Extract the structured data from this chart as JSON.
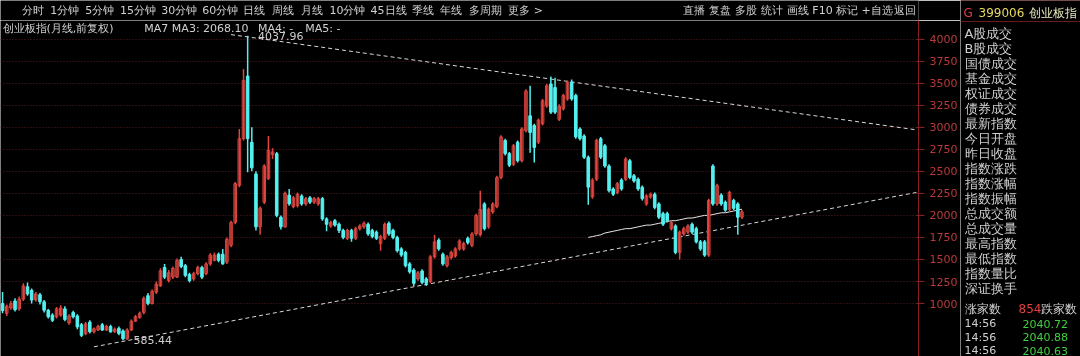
{
  "chart_data": [
    {
      "type": "other",
      "annotations": [
        "分时",
        "1分钟",
        "5分钟",
        "15分钟",
        "30分钟",
        "60分钟",
        "日线",
        "周线",
        "月线",
        "10分钟",
        "45日线",
        "季线",
        "年线",
        "多周期",
        "更多 >"
      ]
    },
    {
      "type": "other",
      "annotations": [
        "直播",
        "复盘",
        "多股",
        "统计",
        "画线",
        "F10",
        "标记",
        "+自选",
        "返回"
      ]
    },
    {
      "type": "candlestick",
      "title": "创业板指(月线,前复权)",
      "categories": [
        null,
        null,
        null,
        null,
        null,
        null,
        null,
        null,
        null,
        null,
        null,
        null,
        null,
        null,
        null,
        null,
        null,
        null,
        null,
        null,
        null,
        null,
        null,
        null,
        null,
        null,
        null,
        null,
        null,
        null,
        null,
        null,
        null,
        null,
        null,
        null,
        null,
        null,
        null,
        null,
        null,
        null,
        null,
        null,
        null,
        null,
        null,
        null,
        null,
        null,
        null,
        null,
        null,
        null,
        null,
        null,
        null,
        null,
        null,
        null,
        null,
        null,
        null,
        null,
        null,
        null,
        null,
        null,
        null,
        null,
        null,
        null,
        null,
        null,
        null,
        null,
        null,
        null,
        null,
        null,
        null,
        null,
        null,
        null,
        null,
        null,
        null,
        null,
        null,
        null,
        null,
        null,
        null,
        null,
        null,
        null,
        null,
        null,
        null,
        null,
        null,
        null,
        null,
        null,
        null,
        null,
        null,
        null,
        null,
        null,
        null,
        null,
        null,
        null,
        null,
        null,
        null,
        null,
        null,
        null,
        null,
        null,
        null,
        null,
        null,
        null,
        null,
        null,
        null,
        null,
        null,
        null,
        null,
        null,
        null,
        null,
        null,
        null,
        null,
        null,
        null,
        null,
        null,
        null,
        null,
        null,
        null,
        null,
        null,
        null,
        null,
        null,
        null,
        null,
        null,
        null,
        null,
        null,
        null,
        null,
        null,
        null,
        null,
        null,
        null,
        null,
        null,
        null,
        null,
        null,
        null,
        null,
        null,
        null,
        null,
        null,
        null,
        null,
        null,
        null,
        null,
        null,
        null,
        null,
        null,
        null,
        null,
        null,
        null,
        null,
        null,
        null,
        null,
        null,
        null,
        null,
        null,
        null,
        null,
        null,
        null,
        null,
        null,
        null,
        null,
        null,
        null,
        null,
        null,
        null,
        null,
        null,
        null,
        null,
        null,
        null,
        null,
        null,
        null,
        null,
        null
      ],
      "ohlc": [
        [
          1000,
          1130,
          890,
          920
        ],
        [
          890,
          990,
          860,
          970
        ],
        [
          950,
          1030,
          930,
          1000
        ],
        [
          1030,
          1060,
          910,
          930
        ],
        [
          940,
          1080,
          920,
          1050
        ],
        [
          1050,
          1230,
          1030,
          1200
        ],
        [
          1190,
          1240,
          1090,
          1110
        ],
        [
          1150,
          1170,
          1000,
          1040
        ],
        [
          1040,
          1130,
          1020,
          1110
        ],
        [
          1100,
          1120,
          990,
          1020
        ],
        [
          1020,
          1040,
          900,
          925
        ],
        [
          925,
          940,
          830,
          850
        ],
        [
          870,
          890,
          790,
          810
        ],
        [
          850,
          960,
          830,
          940
        ],
        [
          870,
          980,
          850,
          950
        ],
        [
          940,
          970,
          800,
          820
        ],
        [
          780,
          880,
          760,
          860
        ],
        [
          900,
          920,
          830,
          850
        ],
        [
          860,
          880,
          710,
          735
        ],
        [
          760,
          780,
          620,
          640
        ],
        [
          660,
          790,
          640,
          770
        ],
        [
          790,
          810,
          660,
          680
        ],
        [
          680,
          730,
          660,
          715
        ],
        [
          700,
          760,
          690,
          740
        ],
        [
          760,
          780,
          690,
          700
        ],
        [
          700,
          760,
          690,
          740
        ],
        [
          740,
          760,
          670,
          680
        ],
        [
          680,
          730,
          670,
          710
        ],
        [
          720,
          740,
          640,
          660
        ],
        [
          690,
          710,
          585.44,
          600
        ],
        [
          600,
          720,
          590,
          700
        ],
        [
          700,
          820,
          690,
          800
        ],
        [
          800,
          870,
          790,
          850
        ],
        [
          840,
          910,
          830,
          890
        ],
        [
          900,
          1080,
          880,
          1060
        ],
        [
          1090,
          1120,
          980,
          1000
        ],
        [
          1000,
          1160,
          990,
          1140
        ],
        [
          1130,
          1250,
          1110,
          1220
        ],
        [
          1200,
          1400,
          1190,
          1370
        ],
        [
          1410,
          1450,
          1280,
          1300
        ],
        [
          1260,
          1380,
          1240,
          1350
        ],
        [
          1300,
          1420,
          1280,
          1400
        ],
        [
          1300,
          1510,
          1290,
          1490
        ],
        [
          1500,
          1530,
          1400,
          1420
        ],
        [
          1430,
          1450,
          1300,
          1320
        ],
        [
          1330,
          1350,
          1240,
          1260
        ],
        [
          1280,
          1360,
          1260,
          1340
        ],
        [
          1340,
          1430,
          1320,
          1410
        ],
        [
          1410,
          1430,
          1280,
          1300
        ],
        [
          1340,
          1470,
          1320,
          1450
        ],
        [
          1450,
          1570,
          1430,
          1550
        ],
        [
          1490,
          1580,
          1480,
          1550
        ],
        [
          1560,
          1580,
          1470,
          1490
        ],
        [
          1560,
          1620,
          1440,
          1450
        ],
        [
          1470,
          1750,
          1450,
          1730
        ],
        [
          1660,
          1940,
          1640,
          1920
        ],
        [
          1920,
          2380,
          1900,
          2360
        ],
        [
          2340,
          2980,
          2320,
          2870
        ],
        [
          2870,
          3660,
          2850,
          3530
        ],
        [
          3580,
          4037.96,
          2490,
          2870
        ],
        [
          2830,
          3000,
          2500,
          2540
        ],
        [
          2470,
          2500,
          1830,
          1870
        ],
        [
          1870,
          2100,
          1780,
          2080
        ],
        [
          2150,
          2580,
          2130,
          2560
        ],
        [
          2420,
          2900,
          2400,
          2740
        ],
        [
          2690,
          2760,
          2640,
          2720
        ],
        [
          2700,
          2720,
          1980,
          2000
        ],
        [
          1980,
          2000,
          1840,
          1870
        ],
        [
          1870,
          2270,
          1860,
          2250
        ],
        [
          2230,
          2300,
          2110,
          2130
        ],
        [
          2100,
          2220,
          2080,
          2200
        ],
        [
          2110,
          2260,
          2090,
          2240
        ],
        [
          2220,
          2240,
          2110,
          2130
        ],
        [
          2130,
          2210,
          2110,
          2190
        ],
        [
          2200,
          2220,
          2130,
          2150
        ],
        [
          2150,
          2210,
          2130,
          2190
        ],
        [
          2130,
          2210,
          2110,
          2190
        ],
        [
          2190,
          2210,
          1940,
          1960
        ],
        [
          1960,
          1980,
          1820,
          1900
        ],
        [
          1880,
          1940,
          1860,
          1920
        ],
        [
          1940,
          1960,
          1870,
          1890
        ],
        [
          1900,
          1920,
          1800,
          1830
        ],
        [
          1830,
          1850,
          1730,
          1750
        ],
        [
          1740,
          1850,
          1720,
          1830
        ],
        [
          1830,
          1850,
          1700,
          1740
        ],
        [
          1740,
          1870,
          1720,
          1850
        ],
        [
          1850,
          1900,
          1830,
          1880
        ],
        [
          1870,
          1930,
          1850,
          1910
        ],
        [
          1900,
          1920,
          1770,
          1790
        ],
        [
          1830,
          1850,
          1740,
          1760
        ],
        [
          1810,
          1830,
          1720,
          1740
        ],
        [
          1680,
          1780,
          1600,
          1760
        ],
        [
          1740,
          1920,
          1720,
          1900
        ],
        [
          1910,
          1930,
          1770,
          1790
        ],
        [
          1830,
          1850,
          1730,
          1750
        ],
        [
          1750,
          1770,
          1580,
          1600
        ],
        [
          1620,
          1640,
          1530,
          1550
        ],
        [
          1580,
          1600,
          1410,
          1430
        ],
        [
          1450,
          1470,
          1340,
          1360
        ],
        [
          1380,
          1400,
          1200,
          1230
        ],
        [
          1280,
          1370,
          1260,
          1350
        ],
        [
          1370,
          1390,
          1220,
          1240
        ],
        [
          1280,
          1300,
          1200,
          1230
        ],
        [
          1250,
          1550,
          1230,
          1530
        ],
        [
          1530,
          1780,
          1510,
          1700
        ],
        [
          1720,
          1740,
          1600,
          1620
        ],
        [
          1560,
          1580,
          1430,
          1450
        ],
        [
          1430,
          1550,
          1410,
          1530
        ],
        [
          1520,
          1600,
          1500,
          1580
        ],
        [
          1540,
          1640,
          1520,
          1620
        ],
        [
          1620,
          1730,
          1600,
          1710
        ],
        [
          1620,
          1700,
          1600,
          1680
        ],
        [
          1740,
          1760,
          1670,
          1690
        ],
        [
          1660,
          1810,
          1640,
          1790
        ],
        [
          1790,
          2020,
          1770,
          2000
        ],
        [
          1780,
          2280,
          1760,
          2070
        ],
        [
          2130,
          2150,
          1830,
          1850
        ],
        [
          1870,
          2090,
          1850,
          2070
        ],
        [
          2040,
          2150,
          2020,
          2130
        ],
        [
          2100,
          2450,
          2080,
          2430
        ],
        [
          2430,
          2910,
          2410,
          2890
        ],
        [
          2850,
          2870,
          2680,
          2700
        ],
        [
          2700,
          2720,
          2550,
          2570
        ],
        [
          2580,
          2810,
          2560,
          2790
        ],
        [
          2830,
          2850,
          2600,
          2620
        ],
        [
          2620,
          3000,
          2600,
          2980
        ],
        [
          2960,
          3430,
          2940,
          3410
        ],
        [
          3130,
          3470,
          2710,
          2940
        ],
        [
          3020,
          3040,
          2600,
          2770
        ],
        [
          2830,
          3100,
          2810,
          3080
        ],
        [
          3040,
          3320,
          3020,
          3300
        ],
        [
          3240,
          3490,
          3220,
          3470
        ],
        [
          3490,
          3576,
          3150,
          3170
        ],
        [
          3450,
          3560,
          3150,
          3170
        ],
        [
          3090,
          3260,
          3070,
          3240
        ],
        [
          3210,
          3380,
          3190,
          3360
        ],
        [
          3320,
          3530,
          3300,
          3510
        ],
        [
          3510,
          3540,
          3300,
          3320
        ],
        [
          3360,
          3380,
          2870,
          2890
        ],
        [
          2980,
          3000,
          2850,
          2870
        ],
        [
          2900,
          2920,
          2640,
          2660
        ],
        [
          2660,
          2680,
          2120,
          2320
        ],
        [
          2210,
          2420,
          2190,
          2400
        ],
        [
          2410,
          2870,
          2390,
          2850
        ],
        [
          2870,
          2890,
          2640,
          2660
        ],
        [
          2790,
          2810,
          2540,
          2560
        ],
        [
          2560,
          2580,
          2260,
          2280
        ],
        [
          2300,
          2320,
          2220,
          2240
        ],
        [
          2260,
          2380,
          2240,
          2360
        ],
        [
          2400,
          2420,
          2280,
          2300
        ],
        [
          2410,
          2660,
          2390,
          2640
        ],
        [
          2620,
          2640,
          2410,
          2430
        ],
        [
          2450,
          2470,
          2370,
          2390
        ],
        [
          2410,
          2430,
          2280,
          2300
        ],
        [
          2320,
          2340,
          2170,
          2190
        ],
        [
          2130,
          2240,
          2110,
          2220
        ],
        [
          2210,
          2260,
          2190,
          2240
        ],
        [
          2240,
          2260,
          2070,
          2090
        ],
        [
          2130,
          2150,
          1960,
          1980
        ],
        [
          2020,
          2040,
          1880,
          1900
        ],
        [
          2020,
          2040,
          1920,
          1940
        ],
        [
          1850,
          1940,
          1830,
          1920
        ],
        [
          1880,
          1900,
          1560,
          1580
        ],
        [
          1580,
          1830,
          1500,
          1810
        ],
        [
          1790,
          1870,
          1770,
          1850
        ],
        [
          1810,
          1900,
          1790,
          1880
        ],
        [
          1900,
          1920,
          1790,
          1810
        ],
        [
          1850,
          1870,
          1680,
          1700
        ],
        [
          1700,
          1720,
          1600,
          1620
        ],
        [
          1700,
          1720,
          1530,
          1550
        ],
        [
          1550,
          2190,
          1530,
          2170
        ],
        [
          2560,
          2580,
          2110,
          2130
        ],
        [
          2130,
          2360,
          2110,
          2340
        ],
        [
          2230,
          2250,
          2110,
          2130
        ],
        [
          2150,
          2170,
          2040,
          2060
        ],
        [
          2070,
          2280,
          2050,
          2260
        ],
        [
          2170,
          2190,
          2060,
          2080
        ],
        [
          2130,
          2150,
          1780,
          1980
        ],
        [
          1980,
          2060,
          1960,
          2040
        ],
        null,
        null,
        null,
        null,
        null,
        null,
        null,
        null,
        null,
        null,
        null,
        null,
        null,
        null,
        null,
        null,
        null,
        null,
        null,
        null,
        null,
        null,
        null,
        null,
        null,
        null,
        null,
        null,
        null,
        null,
        null,
        null,
        null,
        null,
        null,
        null,
        null,
        null,
        null,
        null,
        null,
        null
      ],
      "colors": [
        "#54f0f0",
        "#e0463f",
        "#e0463f",
        "#54f0f0",
        "#e0463f",
        "#e0463f",
        "#54f0f0",
        "#54f0f0",
        "#e0463f",
        "#54f0f0",
        "#54f0f0",
        "#54f0f0",
        "#54f0f0",
        "#e0463f",
        "#e0463f",
        "#54f0f0",
        "#e0463f",
        "#54f0f0",
        "#54f0f0",
        "#54f0f0",
        "#e0463f",
        "#54f0f0",
        "#e0463f",
        "#e0463f",
        "#54f0f0",
        "#e0463f",
        "#54f0f0",
        "#e0463f",
        "#54f0f0",
        "#54f0f0",
        "#e0463f",
        "#e0463f",
        "#e0463f",
        "#e0463f",
        "#e0463f",
        "#54f0f0",
        "#e0463f",
        "#e0463f",
        "#e0463f",
        "#54f0f0",
        "#e0463f",
        "#e0463f",
        "#e0463f",
        "#54f0f0",
        "#54f0f0",
        "#54f0f0",
        "#e0463f",
        "#e0463f",
        "#54f0f0",
        "#e0463f",
        "#e0463f",
        "#e0463f",
        "#54f0f0",
        "#54f0f0",
        "#e0463f",
        "#e0463f",
        "#e0463f",
        "#e0463f",
        "#e0463f",
        "#54f0f0",
        "#54f0f0",
        "#54f0f0",
        "#e0463f",
        "#e0463f",
        "#e0463f",
        "#e0463f",
        "#54f0f0",
        "#54f0f0",
        "#e0463f",
        "#54f0f0",
        "#e0463f",
        "#e0463f",
        "#54f0f0",
        "#e0463f",
        "#54f0f0",
        "#e0463f",
        "#e0463f",
        "#54f0f0",
        "#54f0f0",
        "#e0463f",
        "#54f0f0",
        "#54f0f0",
        "#54f0f0",
        "#e0463f",
        "#54f0f0",
        "#e0463f",
        "#e0463f",
        "#e0463f",
        "#54f0f0",
        "#54f0f0",
        "#54f0f0",
        "#e0463f",
        "#e0463f",
        "#54f0f0",
        "#54f0f0",
        "#54f0f0",
        "#54f0f0",
        "#54f0f0",
        "#54f0f0",
        "#54f0f0",
        "#e0463f",
        "#54f0f0",
        "#54f0f0",
        "#e0463f",
        "#e0463f",
        "#54f0f0",
        "#54f0f0",
        "#e0463f",
        "#e0463f",
        "#e0463f",
        "#e0463f",
        "#e0463f",
        "#54f0f0",
        "#e0463f",
        "#e0463f",
        "#e0463f",
        "#54f0f0",
        "#e0463f",
        "#e0463f",
        "#e0463f",
        "#e0463f",
        "#54f0f0",
        "#54f0f0",
        "#e0463f",
        "#54f0f0",
        "#e0463f",
        "#e0463f",
        "#54f0f0",
        "#54f0f0",
        "#e0463f",
        "#e0463f",
        "#e0463f",
        "#54f0f0",
        "#54f0f0",
        "#e0463f",
        "#e0463f",
        "#e0463f",
        "#54f0f0",
        "#54f0f0",
        "#54f0f0",
        "#54f0f0",
        "#54f0f0",
        "#e0463f",
        "#e0463f",
        "#54f0f0",
        "#54f0f0",
        "#54f0f0",
        "#54f0f0",
        "#e0463f",
        "#54f0f0",
        "#e0463f",
        "#54f0f0",
        "#54f0f0",
        "#54f0f0",
        "#54f0f0",
        "#e0463f",
        "#e0463f",
        "#54f0f0",
        "#54f0f0",
        "#54f0f0",
        "#54f0f0",
        "#e0463f",
        "#54f0f0",
        "#e0463f",
        "#e0463f",
        "#e0463f",
        "#54f0f0",
        "#54f0f0",
        "#54f0f0",
        "#54f0f0",
        "#e0463f",
        "#54f0f0",
        "#e0463f",
        "#54f0f0",
        "#54f0f0",
        "#e0463f",
        "#54f0f0",
        "#54f0f0",
        "#e0463f",
        null,
        null,
        null,
        null,
        null,
        null,
        null,
        null,
        null,
        null,
        null,
        null,
        null,
        null,
        null,
        null,
        null,
        null,
        null,
        null,
        null,
        null,
        null,
        null,
        null,
        null,
        null,
        null,
        null,
        null,
        null,
        null,
        null,
        null,
        null,
        null,
        null,
        null,
        null,
        null,
        null,
        null
      ],
      "series": [
        {
          "type": "line",
          "color": "#e8e8e8",
          "line_style": "solid",
          "values": [
            null,
            null,
            null,
            null,
            null,
            null,
            null,
            null,
            null,
            null,
            null,
            null,
            null,
            null,
            null,
            null,
            null,
            null,
            null,
            null,
            null,
            null,
            null,
            null,
            null,
            null,
            null,
            null,
            null,
            null,
            null,
            null,
            null,
            null,
            null,
            null,
            null,
            null,
            null,
            null,
            null,
            null,
            null,
            null,
            null,
            null,
            null,
            null,
            null,
            null,
            null,
            null,
            null,
            null,
            null,
            null,
            null,
            null,
            null,
            null,
            null,
            null,
            null,
            null,
            null,
            null,
            null,
            null,
            null,
            null,
            null,
            null,
            null,
            null,
            null,
            null,
            null,
            null,
            null,
            null,
            null,
            null,
            null,
            null,
            null,
            null,
            null,
            null,
            null,
            null,
            null,
            null,
            null,
            null,
            null,
            null,
            null,
            null,
            null,
            null,
            null,
            null,
            null,
            null,
            null,
            null,
            null,
            null,
            null,
            null,
            null,
            null,
            null,
            null,
            null,
            null,
            null,
            null,
            null,
            null,
            null,
            null,
            null,
            null,
            null,
            null,
            null,
            null,
            null,
            null,
            null,
            null,
            null,
            null,
            null,
            null,
            null,
            null,
            null,
            null,
            null,
            1750,
            1760,
            1770,
            1780,
            1800,
            1810,
            1820,
            1830,
            1840,
            1850,
            1850,
            1860,
            1870,
            1880,
            1890,
            1890,
            1900,
            1910,
            1920,
            1930,
            1940,
            1940,
            1950,
            1960,
            1970,
            1970,
            1980,
            1990,
            2000,
            2000,
            2010,
            2020,
            2030,
            2030,
            2040,
            2050,
            2060,
            2070,
            null,
            null,
            null,
            null,
            null,
            null,
            null,
            null,
            null,
            null,
            null,
            null,
            null,
            null,
            null,
            null,
            null,
            null,
            null,
            null,
            null,
            null,
            null,
            null,
            null,
            null,
            null,
            null,
            null,
            null,
            null,
            null,
            null,
            null,
            null,
            null,
            null,
            null,
            null,
            null,
            null,
            null
          ]
        },
        {
          "type": "line",
          "color": "#d8d8d8",
          "line_style": "dashed",
          "values": [
            null,
            null,
            null,
            null,
            null,
            null,
            null,
            null,
            null,
            null,
            null,
            null,
            null,
            null,
            null,
            null,
            null,
            null,
            null,
            null,
            null,
            null,
            null,
            null,
            null,
            null,
            null,
            null,
            null,
            null,
            null,
            null,
            null,
            null,
            null,
            null,
            null,
            null,
            null,
            null,
            null,
            null,
            null,
            null,
            null,
            null,
            null,
            null,
            null,
            null,
            null,
            null,
            null,
            null,
            null,
            4050,
            null,
            null,
            null,
            null,
            null,
            null,
            null,
            null,
            null,
            null,
            null,
            null,
            null,
            null,
            null,
            null,
            null,
            null,
            null,
            null,
            null,
            null,
            null,
            null,
            null,
            null,
            null,
            null,
            null,
            null,
            null,
            null,
            null,
            null,
            null,
            null,
            null,
            null,
            null,
            null,
            null,
            null,
            null,
            null,
            null,
            null,
            null,
            null,
            null,
            null,
            null,
            null,
            null,
            null,
            null,
            null,
            null,
            null,
            null,
            null,
            null,
            null,
            null,
            null,
            null,
            null,
            null,
            null,
            null,
            null,
            null,
            null,
            null,
            null,
            null,
            null,
            null,
            null,
            null,
            null,
            null,
            null,
            null,
            null,
            null,
            null,
            null,
            null,
            null,
            null,
            null,
            null,
            null,
            null,
            null,
            null,
            null,
            null,
            null,
            null,
            null,
            null,
            null,
            null,
            null,
            null,
            null,
            null,
            null,
            null,
            null,
            null,
            null,
            null,
            null,
            null,
            null,
            null,
            null,
            null,
            null,
            null,
            null,
            null,
            null,
            null,
            null,
            null,
            null,
            null,
            null,
            null,
            null,
            null,
            null,
            null,
            null,
            null,
            null,
            null,
            null,
            null,
            null,
            null,
            null,
            null,
            null,
            null,
            null,
            null,
            null,
            null,
            null,
            null,
            null,
            null,
            null,
            null,
            null,
            null,
            null,
            null,
            null,
            null,
            2970
          ]
        },
        {
          "type": "line",
          "color": "#d8d8d8",
          "line_style": "dashed",
          "values": [
            null,
            null,
            null,
            null,
            null,
            null,
            null,
            null,
            null,
            null,
            null,
            null,
            null,
            null,
            null,
            null,
            null,
            null,
            null,
            null,
            null,
            null,
            510,
            null,
            null,
            null,
            null,
            null,
            null,
            null,
            null,
            null,
            null,
            null,
            null,
            null,
            null,
            null,
            null,
            null,
            null,
            null,
            null,
            null,
            null,
            null,
            null,
            null,
            null,
            null,
            null,
            null,
            null,
            null,
            null,
            null,
            null,
            null,
            null,
            null,
            null,
            null,
            null,
            null,
            null,
            null,
            null,
            null,
            null,
            null,
            null,
            null,
            null,
            null,
            null,
            null,
            null,
            null,
            null,
            null,
            null,
            null,
            null,
            null,
            null,
            null,
            null,
            null,
            null,
            null,
            null,
            null,
            null,
            null,
            null,
            null,
            null,
            null,
            null,
            null,
            null,
            null,
            null,
            null,
            null,
            null,
            null,
            null,
            null,
            null,
            null,
            null,
            null,
            null,
            null,
            null,
            null,
            null,
            null,
            null,
            null,
            null,
            null,
            null,
            null,
            null,
            null,
            null,
            null,
            null,
            null,
            null,
            null,
            null,
            null,
            null,
            null,
            null,
            null,
            null,
            null,
            null,
            null,
            null,
            null,
            null,
            null,
            null,
            null,
            null,
            null,
            null,
            null,
            null,
            null,
            null,
            null,
            null,
            null,
            null,
            null,
            null,
            null,
            null,
            null,
            null,
            null,
            null,
            null,
            null,
            null,
            null,
            null,
            null,
            null,
            null,
            null,
            null,
            null,
            null,
            null,
            null,
            null,
            null,
            null,
            null,
            null,
            null,
            null,
            null,
            null,
            null,
            null,
            null,
            null,
            null,
            null,
            null,
            null,
            null,
            null,
            null,
            null,
            null,
            null,
            null,
            null,
            null,
            null,
            null,
            null,
            null,
            null,
            null,
            null,
            null,
            null,
            null,
            null,
            null,
            2260
          ]
        }
      ],
      "ylim": [
        400,
        4210
      ],
      "yticks": [
        1000,
        1250,
        1500,
        1750,
        2000,
        2250,
        2500,
        2750,
        3000,
        3250,
        3500,
        3750,
        4000
      ],
      "grid": "y",
      "tick_labels": "y",
      "annotations": [
        "MA7",
        "MA3: 2068.10",
        "MA4: -",
        "MA5: -",
        {
          "text": "4037.96",
          "y": 4037.96
        },
        {
          "text": "585.44",
          "y": 585.44
        }
      ]
    },
    {
      "type": "other",
      "annotations": [
        "G",
        "399006",
        "创业板指",
        "A股成交",
        "B股成交",
        "国债成交",
        "基金成交",
        "权证成交",
        "债券成交",
        "最新指数",
        "今日开盘",
        "昨日收盘",
        "指数涨跌",
        "指数涨幅",
        "指数振幅",
        "总成交额",
        "总成交量",
        "最高指数",
        "最低指数",
        "指数量比",
        "深证换手",
        "涨家数",
        "854",
        "跌家数",
        "14:56",
        "2040.72",
        "14:56",
        "2040.88",
        "14:56",
        "2040.63"
      ]
    }
  ]
}
